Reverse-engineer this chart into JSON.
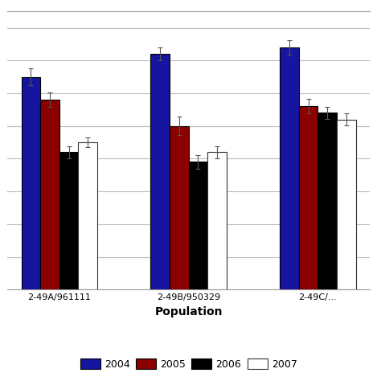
{
  "populations": [
    "2-49A/961111",
    "2-49B/950329",
    "2-49C/..."
  ],
  "years": [
    "2004",
    "2005",
    "2006",
    "2007"
  ],
  "bar_colors": [
    "#1515a0",
    "#8b0000",
    "#000000",
    "#ffffff"
  ],
  "bar_edgecolors": [
    "#000000",
    "#000000",
    "#000000",
    "#333333"
  ],
  "values": [
    [
      6.5,
      5.8,
      4.2,
      4.5
    ],
    [
      7.2,
      5.0,
      3.9,
      4.2
    ],
    [
      7.4,
      5.6,
      5.4,
      5.2
    ]
  ],
  "errors": [
    [
      0.25,
      0.22,
      0.18,
      0.15
    ],
    [
      0.2,
      0.28,
      0.22,
      0.18
    ],
    [
      0.22,
      0.22,
      0.18,
      0.18
    ]
  ],
  "ylabel": "",
  "xlabel": "Population",
  "ylim": [
    0,
    8.5
  ],
  "background_color": "#ffffff",
  "grid_color": "#bbbbbb",
  "bar_width": 0.22,
  "legend_labels": [
    "2004",
    "2005",
    "2006",
    "2007"
  ]
}
